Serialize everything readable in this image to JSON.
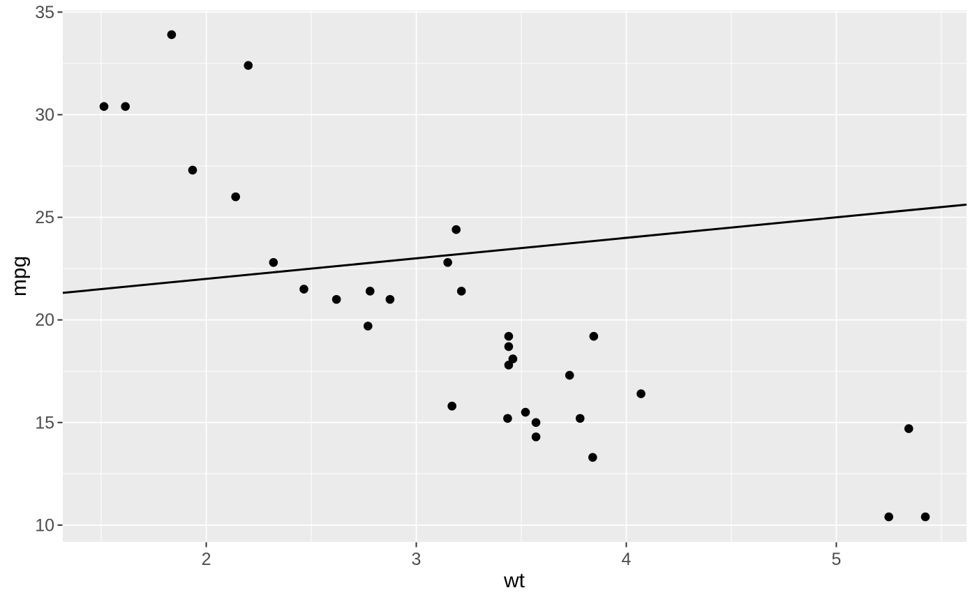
{
  "chart_data": {
    "type": "scatter",
    "title": "",
    "xlabel": "wt",
    "ylabel": "mpg",
    "xlim": [
      1.317,
      5.62
    ],
    "ylim": [
      9.18,
      35.08
    ],
    "x_major_ticks": [
      2,
      3,
      4,
      5
    ],
    "y_major_ticks": [
      10,
      15,
      20,
      25,
      30,
      35
    ],
    "x_minor_ticks": [
      1.5,
      2.5,
      3.5,
      4.5,
      5.5
    ],
    "y_minor_ticks": [
      12.5,
      17.5,
      22.5,
      27.5,
      32.5
    ],
    "grid": "on",
    "legend_position": "none",
    "points": [
      [
        2.62,
        21.0
      ],
      [
        2.875,
        21.0
      ],
      [
        2.32,
        22.8
      ],
      [
        3.215,
        21.4
      ],
      [
        3.44,
        18.7
      ],
      [
        3.46,
        18.1
      ],
      [
        3.57,
        14.3
      ],
      [
        3.19,
        24.4
      ],
      [
        3.15,
        22.8
      ],
      [
        3.44,
        19.2
      ],
      [
        3.44,
        17.8
      ],
      [
        4.07,
        16.4
      ],
      [
        3.73,
        17.3
      ],
      [
        3.78,
        15.2
      ],
      [
        5.25,
        10.4
      ],
      [
        5.424,
        10.4
      ],
      [
        5.345,
        14.7
      ],
      [
        2.2,
        32.4
      ],
      [
        1.615,
        30.4
      ],
      [
        1.835,
        33.9
      ],
      [
        2.465,
        21.5
      ],
      [
        3.52,
        15.5
      ],
      [
        3.435,
        15.2
      ],
      [
        3.84,
        13.3
      ],
      [
        3.845,
        19.2
      ],
      [
        1.935,
        27.3
      ],
      [
        2.14,
        26.0
      ],
      [
        1.513,
        30.4
      ],
      [
        3.17,
        15.8
      ],
      [
        2.77,
        19.7
      ],
      [
        3.57,
        15.0
      ],
      [
        2.78,
        21.4
      ]
    ],
    "abline": {
      "intercept": 20,
      "slope": 1
    },
    "style": {
      "page_bg": "#FFFFFF",
      "panel_bg": "#EBEBEB",
      "grid_color": "#FFFFFF",
      "point_color": "#000000",
      "line_color": "#000000",
      "tick_mark_color": "#333333",
      "tick_label_color": "#4D4D4D",
      "axis_title_color": "#000000"
    }
  }
}
